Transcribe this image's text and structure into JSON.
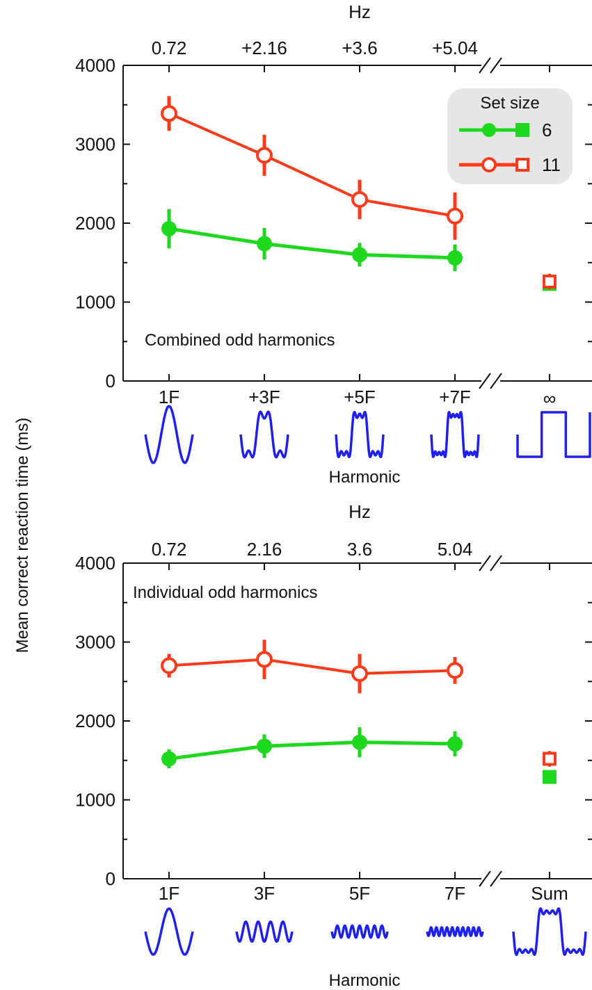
{
  "y_axis_label": "Mean correct reaction time (ms)",
  "legend": {
    "title": "Set size",
    "entries": [
      {
        "label": "6",
        "color": "#1ed81e",
        "marker": "filled"
      },
      {
        "label": "11",
        "color": "#ff3a1a",
        "marker": "open"
      }
    ]
  },
  "colors": {
    "green": "#1ed81e",
    "red": "#ff3a1a",
    "wave": "#1f1ff0",
    "legend_bg": "#e6e6e6"
  },
  "chart_data": [
    {
      "type": "line",
      "annotation": "Combined odd harmonics",
      "top_axis_title": "Hz",
      "top_tick_labels": [
        "0.72",
        "+2.16",
        "+3.6",
        "+5.04"
      ],
      "categories": [
        "1F",
        "+3F",
        "+5F",
        "+7F"
      ],
      "extra_category": "∞",
      "xlabel": "Harmonic",
      "ylim": [
        0,
        4000
      ],
      "yticks": [
        0,
        1000,
        2000,
        3000,
        4000
      ],
      "series": [
        {
          "name": "6",
          "values": [
            1930,
            1740,
            1600,
            1560
          ],
          "errors": [
            250,
            200,
            150,
            170
          ],
          "extra_value": 1230,
          "extra_error": 80
        },
        {
          "name": "11",
          "values": [
            3390,
            2860,
            2300,
            2090
          ],
          "errors": [
            220,
            260,
            250,
            300
          ],
          "extra_value": 1260,
          "extra_error": 100
        }
      ]
    },
    {
      "type": "line",
      "annotation": "Individual odd harmonics",
      "top_axis_title": "Hz",
      "top_tick_labels": [
        "0.72",
        "2.16",
        "3.6",
        "5.04"
      ],
      "categories": [
        "1F",
        "3F",
        "5F",
        "7F"
      ],
      "extra_category": "Sum",
      "xlabel": "Harmonic",
      "ylim": [
        0,
        4000
      ],
      "yticks": [
        0,
        1000,
        2000,
        3000,
        4000
      ],
      "series": [
        {
          "name": "6",
          "values": [
            1520,
            1680,
            1730,
            1710
          ],
          "errors": [
            120,
            150,
            190,
            160
          ],
          "extra_value": 1290,
          "extra_error": 60
        },
        {
          "name": "11",
          "values": [
            2700,
            2780,
            2600,
            2640
          ],
          "errors": [
            150,
            250,
            250,
            170
          ],
          "extra_value": 1520,
          "extra_error": 100
        }
      ]
    }
  ]
}
